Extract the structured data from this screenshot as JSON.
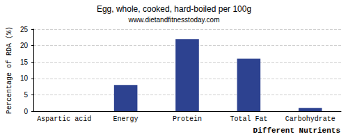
{
  "chart_data": {
    "type": "bar",
    "title": "Egg, whole, cooked, hard-boiled per 100g",
    "subtitle": "www.dietandfitnesstoday.com",
    "x_label": "Different Nutrients",
    "y_label": "Percentage of RDA (%)",
    "categories": [
      "Aspartic acid",
      "Energy",
      "Protein",
      "Total Fat",
      "Carbohydrate"
    ],
    "values": [
      0,
      8,
      22,
      16,
      1
    ],
    "color": "#2d4290",
    "ylim": [
      0,
      25
    ],
    "yticks": [
      0,
      5,
      10,
      15,
      20,
      25
    ],
    "grid": true
  }
}
